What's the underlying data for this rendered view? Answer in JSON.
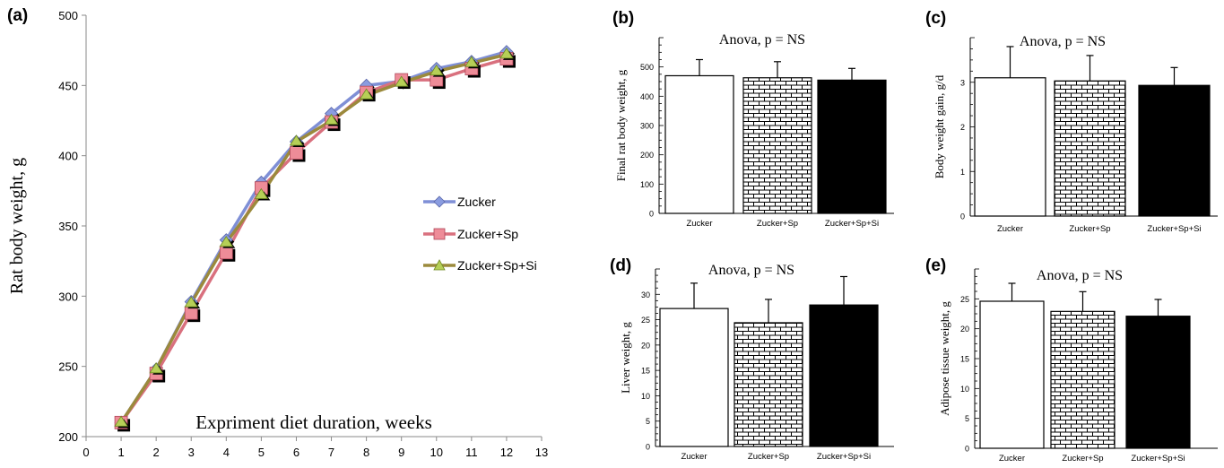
{
  "colors": {
    "zucker": "#7f8fd6",
    "zucker_sp": "#d9707e",
    "zucker_sp_si": "#9b8a3c",
    "marker_zucker": "#8a9ce0",
    "marker_sp": "#ee8c98",
    "marker_si": "#b6cf57"
  },
  "chart_data": [
    {
      "id": "a",
      "panel_label": "(a)",
      "type": "line",
      "xlabel": "Expriment diet duration, weeks",
      "ylabel": "Rat body weight, g",
      "xlim": [
        0,
        13
      ],
      "ylim": [
        200,
        500
      ],
      "x_ticks": [
        "0",
        "1",
        "2",
        "3",
        "4",
        "5",
        "6",
        "7",
        "8",
        "9",
        "10",
        "11",
        "12",
        "13"
      ],
      "y_ticks": [
        "200",
        "250",
        "300",
        "350",
        "400",
        "450",
        "500"
      ],
      "x": [
        1,
        2,
        3,
        4,
        5,
        6,
        7,
        8,
        9,
        10,
        11,
        12
      ],
      "legend_position": "center-right",
      "series": [
        {
          "name": "Zucker",
          "marker": "diamond",
          "values": [
            210,
            248,
            296,
            340,
            381,
            410,
            430,
            450,
            453,
            462,
            467,
            474
          ]
        },
        {
          "name": "Zucker+Sp",
          "marker": "square",
          "values": [
            210,
            245,
            288,
            331,
            377,
            402,
            424,
            445,
            454,
            454,
            462,
            469
          ]
        },
        {
          "name": "Zucker+Sp+Si",
          "marker": "triangle",
          "values": [
            210,
            248,
            295,
            338,
            372,
            410,
            425,
            443,
            452,
            460,
            466,
            472
          ]
        }
      ]
    },
    {
      "id": "b",
      "panel_label": "(b)",
      "type": "bar",
      "annotation": "Anova, p = NS",
      "ylabel": "Final rat body weight, g",
      "ylim": [
        0,
        600
      ],
      "y_ticks": [
        "0",
        "100",
        "200",
        "300",
        "400",
        "500"
      ],
      "categories": [
        "Zucker",
        "Zucker+Sp",
        "Zucker+Sp+Si"
      ],
      "values": [
        470,
        463,
        455
      ],
      "errors": [
        55,
        55,
        40
      ]
    },
    {
      "id": "c",
      "panel_label": "(c)",
      "type": "bar",
      "annotation": "Anova, p = NS",
      "ylabel": "Body weight gain, g/d",
      "ylim": [
        0,
        4
      ],
      "y_ticks": [
        "0",
        "1",
        "2",
        "3"
      ],
      "categories": [
        "Zucker",
        "Zucker+Sp",
        "Zucker+Sp+Si"
      ],
      "values": [
        3.1,
        3.03,
        2.93
      ],
      "errors": [
        0.7,
        0.57,
        0.4
      ]
    },
    {
      "id": "d",
      "panel_label": "(d)",
      "type": "bar",
      "annotation": "Anova, p = NS",
      "ylabel": "Liver weight, g",
      "ylim": [
        0,
        35
      ],
      "y_ticks": [
        "0",
        "5",
        "10",
        "15",
        "20",
        "25",
        "30"
      ],
      "categories": [
        "Zucker",
        "Zucker+Sp",
        "Zucker+Sp+Si"
      ],
      "values": [
        27.2,
        24.4,
        27.9
      ],
      "errors": [
        5.0,
        4.6,
        5.6
      ]
    },
    {
      "id": "e",
      "panel_label": "(e)",
      "type": "bar",
      "annotation": "Anova, p = NS",
      "ylabel": "Adipose tissue weight, g",
      "ylim": [
        0,
        30
      ],
      "y_ticks": [
        "0",
        "5",
        "10",
        "15",
        "20",
        "25"
      ],
      "categories": [
        "Zucker",
        "Zucker+Sp",
        "Zucker+Sp+Si"
      ],
      "values": [
        24.6,
        22.9,
        22.1
      ],
      "errors": [
        3.0,
        3.3,
        2.8
      ]
    }
  ]
}
